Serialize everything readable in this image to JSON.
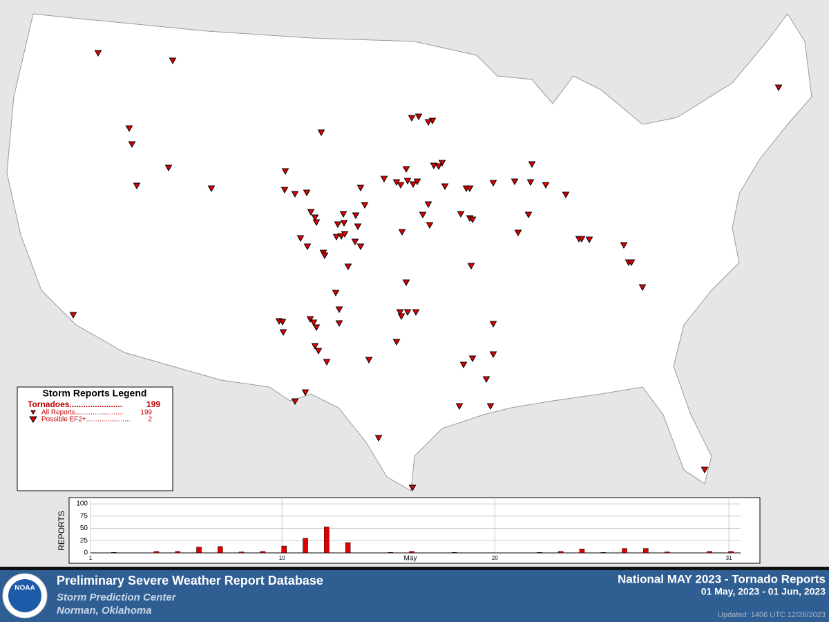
{
  "legend": {
    "title": "Storm Reports Legend",
    "rows": [
      {
        "label": "Tornadoes.......................",
        "count": "199"
      },
      {
        "label": "All Reports.........................",
        "count": "199"
      },
      {
        "label": "Possible EF2+.......................",
        "count": "2"
      }
    ]
  },
  "chart_data": {
    "type": "bar",
    "y_label": "REPORTS",
    "x_label": "May",
    "color": "#e00000",
    "x": [
      1,
      2,
      3,
      4,
      5,
      6,
      7,
      8,
      9,
      10,
      11,
      12,
      13,
      14,
      15,
      16,
      17,
      18,
      19,
      20,
      21,
      22,
      23,
      24,
      25,
      26,
      27,
      28,
      29,
      30,
      31
    ],
    "values": [
      0,
      1,
      0,
      3,
      3,
      12,
      13,
      2,
      3,
      14,
      30,
      53,
      21,
      0,
      1,
      3,
      0,
      1,
      0,
      0,
      0,
      1,
      3,
      8,
      1,
      9,
      9,
      2,
      0,
      3,
      3
    ],
    "xlim": [
      1,
      31.55
    ],
    "xticks": [
      1,
      10,
      20,
      31
    ],
    "ylim": [
      0,
      110
    ],
    "yticks": [
      0,
      25,
      50,
      75,
      100
    ],
    "grid": true
  },
  "footer": {
    "title": "Preliminary Severe Weather Report Database",
    "org": "Storm Prediction Center",
    "place": "Norman, Oklahoma",
    "report_title": "National MAY 2023 - Tornado Reports",
    "range": "01 May, 2023 - 01 Jun, 2023",
    "updated": "Updated: 1406 UTC 12/26/2023",
    "logo": "NOAA"
  }
}
